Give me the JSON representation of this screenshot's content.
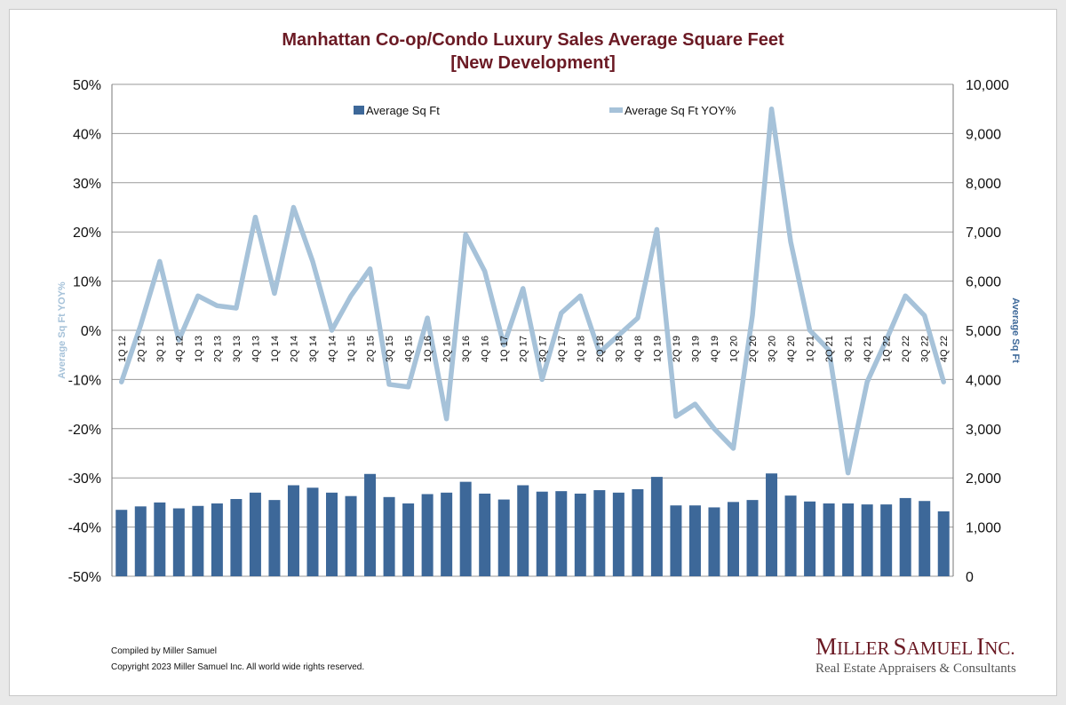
{
  "chart_data": {
    "type": "bar",
    "title": "Manhattan Co-op/Condo Luxury Sales Average Square Feet",
    "subtitle": "[New Development]",
    "y_left_label": "Average Sq Ft YOY%",
    "y_right_label": "Average Sq Ft",
    "y_left_ticks": [
      "50%",
      "40%",
      "30%",
      "20%",
      "10%",
      "0%",
      "-10%",
      "-20%",
      "-30%",
      "-40%",
      "-50%"
    ],
    "y_right_ticks": [
      "10,000",
      "9,000",
      "8,000",
      "7,000",
      "6,000",
      "5,000",
      "4,000",
      "3,000",
      "2,000",
      "1,000",
      "0"
    ],
    "y_left_range": [
      -50,
      50
    ],
    "y_right_range": [
      0,
      10000
    ],
    "grid": true,
    "legend_position": "top",
    "colors": {
      "bar": "#3d6899",
      "line": "#a6c2d9",
      "title": "#6b1a24",
      "grid": "#9a9a9a",
      "axis_left_label": "#a6c2d9",
      "axis_right_label": "#3d6899"
    },
    "categories": [
      "1Q 12",
      "2Q 12",
      "3Q 12",
      "4Q 12",
      "1Q 13",
      "2Q 13",
      "3Q 13",
      "4Q 13",
      "1Q 14",
      "2Q 14",
      "3Q 14",
      "4Q 14",
      "1Q 15",
      "2Q 15",
      "3Q 15",
      "4Q 15",
      "1Q 16",
      "2Q 16",
      "3Q 16",
      "4Q 16",
      "1Q 17",
      "2Q 17",
      "3Q 17",
      "4Q 17",
      "1Q 18",
      "2Q 18",
      "3Q 18",
      "4Q 18",
      "1Q 19",
      "2Q 19",
      "3Q 19",
      "4Q 19",
      "1Q 20",
      "2Q 20",
      "3Q 20",
      "4Q 20",
      "1Q 21",
      "2Q 21",
      "3Q 21",
      "4Q 21",
      "1Q 22",
      "2Q 22",
      "3Q 22",
      "4Q 22"
    ],
    "series": [
      {
        "name": "Average Sq Ft",
        "type": "bar",
        "axis": "right",
        "values": [
          1350,
          1420,
          1500,
          1380,
          1430,
          1480,
          1570,
          1700,
          1550,
          1850,
          1800,
          1700,
          1630,
          2080,
          1610,
          1480,
          1670,
          1700,
          1920,
          1680,
          1560,
          1850,
          1720,
          1730,
          1680,
          1750,
          1700,
          1770,
          2020,
          1440,
          1440,
          1400,
          1510,
          1550,
          2090,
          1640,
          1520,
          1480,
          1480,
          1460,
          1460,
          1590,
          1530,
          1320
        ]
      },
      {
        "name": "Average Sq Ft YOY%",
        "type": "line",
        "axis": "left",
        "values": [
          -10.5,
          1,
          14,
          -2,
          7,
          5,
          4.5,
          23,
          7.5,
          25,
          14,
          0,
          7,
          12.5,
          -11,
          -11.5,
          2.5,
          -18,
          19.5,
          12,
          -3,
          8.5,
          -10,
          3.5,
          7,
          -4.5,
          -1,
          2.5,
          20.5,
          -17.5,
          -15,
          -20,
          -24,
          3,
          45,
          18,
          0,
          -4,
          -29,
          -10.5,
          -2,
          7,
          3,
          -10.5
        ]
      }
    ]
  },
  "footer": {
    "compiled": "Compiled by Miller Samuel",
    "copyright": "Copyright 2023 Miller Samuel Inc.  All world wide rights reserved."
  },
  "brand": {
    "name_first": "M",
    "name_rest": "ILLER",
    "name_first2": "S",
    "name_rest2": "AMUEL",
    "name_first3": "I",
    "name_rest3": "NC.",
    "tagline": "Real Estate Appraisers & Consultants"
  }
}
